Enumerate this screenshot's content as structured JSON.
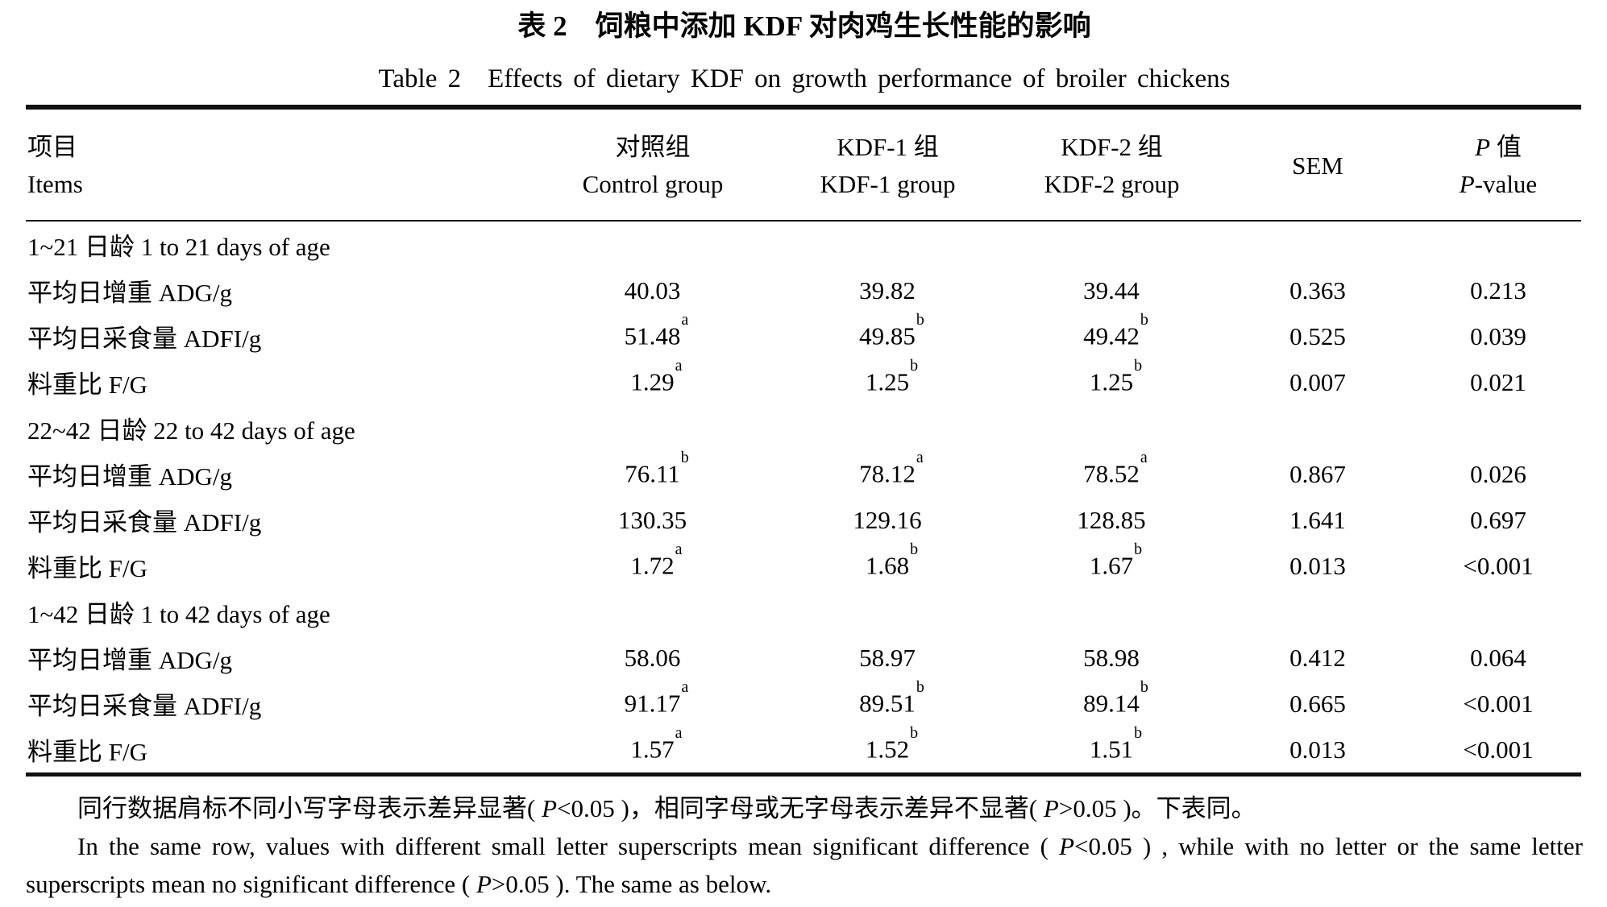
{
  "titles": {
    "cn": "表 2　饲粮中添加 KDF 对肉鸡生长性能的影响",
    "en": "Table 2　Effects of dietary KDF on growth performance of broiler chickens"
  },
  "header": {
    "items_cn": "项目",
    "items_en": "Items",
    "control_cn": "对照组",
    "control_en": "Control group",
    "kdf1_cn": "KDF-1 组",
    "kdf1_en": "KDF-1 group",
    "kdf2_cn": "KDF-2 组",
    "kdf2_en": "KDF-2 group",
    "sem": "SEM",
    "p_symbol": "P",
    "p_cn_rest": " 值",
    "p_en_rest": "-value"
  },
  "rows": [
    {
      "type": "section",
      "item": "1~21 日龄 1 to 21 days of age"
    },
    {
      "type": "data",
      "item": "平均日增重 ADG/g",
      "g1": "40.03",
      "g2": "39.82",
      "g3": "39.44",
      "sem": "0.363",
      "p": "0.213"
    },
    {
      "type": "data",
      "item": "平均日采食量 ADFI/g",
      "g1": "51.48",
      "g1s": "a",
      "g2": "49.85",
      "g2s": "b",
      "g3": "49.42",
      "g3s": "b",
      "sem": "0.525",
      "p": "0.039"
    },
    {
      "type": "data",
      "item": "料重比 F/G",
      "g1": "1.29",
      "g1s": "a",
      "g2": "1.25",
      "g2s": "b",
      "g3": "1.25",
      "g3s": "b",
      "sem": "0.007",
      "p": "0.021"
    },
    {
      "type": "section",
      "item": "22~42 日龄 22 to 42 days of age"
    },
    {
      "type": "data",
      "item": "平均日增重 ADG/g",
      "g1": "76.11",
      "g1s": "b",
      "g2": "78.12",
      "g2s": "a",
      "g3": "78.52",
      "g3s": "a",
      "sem": "0.867",
      "p": "0.026"
    },
    {
      "type": "data",
      "item": "平均日采食量 ADFI/g",
      "g1": "130.35",
      "g2": "129.16",
      "g3": "128.85",
      "sem": "1.641",
      "p": "0.697"
    },
    {
      "type": "data",
      "item": "料重比 F/G",
      "g1": "1.72",
      "g1s": "a",
      "g2": "1.68",
      "g2s": "b",
      "g3": "1.67",
      "g3s": "b",
      "sem": "0.013",
      "p": "<0.001"
    },
    {
      "type": "section",
      "item": "1~42 日龄 1 to 42 days of age"
    },
    {
      "type": "data",
      "item": "平均日增重 ADG/g",
      "g1": "58.06",
      "g2": "58.97",
      "g3": "58.98",
      "sem": "0.412",
      "p": "0.064"
    },
    {
      "type": "data",
      "item": "平均日采食量 ADFI/g",
      "g1": "91.17",
      "g1s": "a",
      "g2": "89.51",
      "g2s": "b",
      "g3": "89.14",
      "g3s": "b",
      "sem": "0.665",
      "p": "<0.001"
    },
    {
      "type": "data",
      "item": "料重比 F/G",
      "g1": "1.57",
      "g1s": "a",
      "g2": "1.52",
      "g2s": "b",
      "g3": "1.51",
      "g3s": "b",
      "sem": "0.013",
      "p": "<0.001"
    }
  ],
  "footnotes": {
    "cn": "同行数据肩标不同小写字母表示差异显著( P<0.05 )，相同字母或无字母表示差异不显著( P>0.05 )。下表同。",
    "en": "In the same row, values with different small letter superscripts mean significant difference ( P<0.05 ) , while with no letter or the same letter superscripts mean no significant difference ( P>0.05 ). The same as below."
  }
}
